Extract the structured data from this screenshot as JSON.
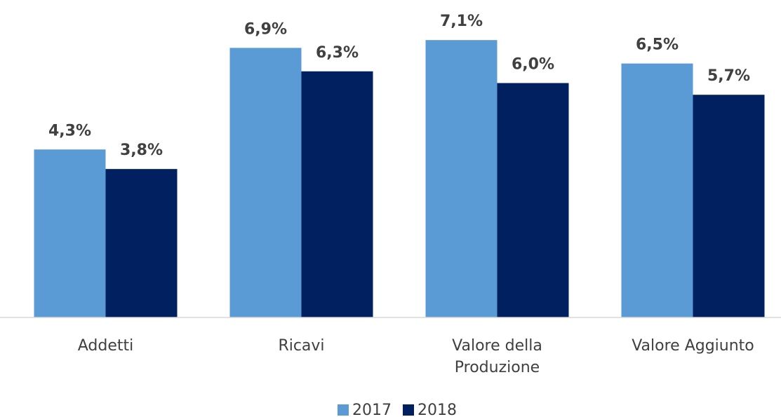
{
  "chart_data": {
    "type": "bar",
    "categories": [
      "Addetti",
      "Ricavi",
      "Valore della Produzione",
      "Valore Aggiunto"
    ],
    "series": [
      {
        "name": "2017",
        "color": "#5b9bd5",
        "values": [
          4.3,
          6.9,
          7.1,
          6.5
        ],
        "value_labels": [
          "4,3%",
          "6,9%",
          "7,1%",
          "6,5%"
        ]
      },
      {
        "name": "2018",
        "color": "#002060",
        "values": [
          3.8,
          6.3,
          6.0,
          5.7
        ],
        "value_labels": [
          "3,8%",
          "6,3%",
          "6,0%",
          "5,7%"
        ]
      }
    ],
    "ylim": [
      0,
      8
    ],
    "legend": "bottom"
  }
}
